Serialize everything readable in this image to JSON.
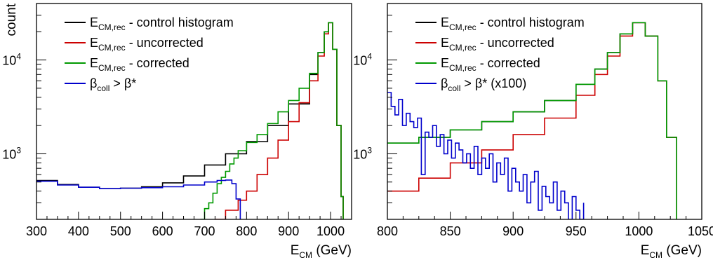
{
  "chart_data": [
    {
      "type": "line",
      "panel": "left",
      "xlabel": "E",
      "xlabel_sub": "CM",
      "xlabel_unit": " (GeV)",
      "ylabel": "count",
      "xlim": [
        300,
        1050
      ],
      "ylim": [
        200,
        40000
      ],
      "yscale": "log",
      "xticks": [
        300,
        400,
        500,
        600,
        700,
        800,
        900,
        1000
      ],
      "yticks": [
        {
          "value": 1000,
          "base": "10",
          "exp": "3"
        },
        {
          "value": 10000,
          "base": "10",
          "exp": "4"
        }
      ],
      "legend": {
        "position": "top-left"
      },
      "series": [
        {
          "key": "control",
          "label_main": "E",
          "label_sub": "CM,rec",
          "label_rest": " - control histogram",
          "color": "#000000",
          "x": [
            300,
            350,
            400,
            450,
            500,
            550,
            600,
            650,
            700,
            750,
            800,
            850,
            900,
            950,
            970,
            985,
            995,
            1005,
            1015,
            1025,
            1030
          ],
          "y": [
            520,
            470,
            440,
            425,
            430,
            445,
            490,
            580,
            760,
            1000,
            1350,
            2000,
            3400,
            7000,
            12000,
            20000,
            25000,
            13000,
            2000,
            350,
            200
          ]
        },
        {
          "key": "uncorrected",
          "label_main": "E",
          "label_sub": "CM,rec",
          "label_rest": " - uncorrected",
          "color": "#cc0000",
          "x": [
            725,
            750,
            780,
            800,
            825,
            850,
            875,
            900,
            925,
            950,
            970,
            985,
            995,
            1005,
            1015,
            1025,
            1030
          ],
          "y": [
            200,
            250,
            320,
            400,
            600,
            900,
            1400,
            2200,
            3500,
            6000,
            11000,
            19000,
            25000,
            13000,
            2000,
            350,
            200
          ]
        },
        {
          "key": "corrected",
          "label_main": "E",
          "label_sub": "CM,rec",
          "label_rest": " - corrected",
          "color": "#009900",
          "x": [
            690,
            700,
            710,
            720,
            730,
            740,
            750,
            760,
            770,
            780,
            800,
            825,
            850,
            875,
            900,
            925,
            950,
            970,
            985,
            995,
            1005,
            1015,
            1025,
            1030
          ],
          "y": [
            200,
            260,
            300,
            380,
            480,
            560,
            650,
            780,
            900,
            1080,
            1320,
            1600,
            2100,
            2800,
            3700,
            5000,
            7200,
            12000,
            20000,
            25000,
            13000,
            2000,
            350,
            200
          ]
        },
        {
          "key": "betacoll",
          "label_main": "β",
          "label_sub": "coll",
          "label_rest": " > β*",
          "color": "#0000cc",
          "x": [
            300,
            350,
            400,
            450,
            500,
            550,
            600,
            650,
            700,
            730,
            750,
            765,
            775,
            785
          ],
          "y": [
            510,
            465,
            440,
            425,
            430,
            435,
            445,
            465,
            500,
            520,
            525,
            480,
            330,
            200
          ]
        }
      ]
    },
    {
      "type": "line",
      "panel": "right",
      "xlabel": "E",
      "xlabel_sub": "CM",
      "xlabel_unit": " (GeV)",
      "ylabel": "",
      "xlim": [
        800,
        1050
      ],
      "ylim": [
        200,
        40000
      ],
      "yscale": "log",
      "xticks": [
        800,
        850,
        900,
        950,
        1000,
        1050
      ],
      "yticks": [
        {
          "value": 1000,
          "base": "10",
          "exp": "3"
        },
        {
          "value": 10000,
          "base": "10",
          "exp": "4"
        }
      ],
      "legend": {
        "position": "top-left"
      },
      "series": [
        {
          "key": "control",
          "label_main": "E",
          "label_sub": "CM,rec",
          "label_rest": " - control histogram",
          "color": "#000000",
          "x": [
            800,
            825,
            850,
            875,
            900,
            925,
            950,
            965,
            975,
            985,
            995,
            1005,
            1015,
            1022,
            1030
          ],
          "y": [
            1300,
            1500,
            1800,
            2200,
            2800,
            3700,
            5500,
            8000,
            12000,
            19000,
            25000,
            18000,
            6000,
            1500,
            200
          ]
        },
        {
          "key": "uncorrected",
          "label_main": "E",
          "label_sub": "CM,rec",
          "label_rest": " - uncorrected",
          "color": "#cc0000",
          "x": [
            800,
            825,
            850,
            875,
            900,
            925,
            950,
            965,
            975,
            985,
            995,
            1005,
            1015,
            1022,
            1030
          ],
          "y": [
            400,
            550,
            800,
            1100,
            1600,
            2400,
            4200,
            7000,
            11000,
            18000,
            25000,
            18000,
            6000,
            1500,
            200
          ]
        },
        {
          "key": "corrected",
          "label_main": "E",
          "label_sub": "CM,rec",
          "label_rest": " - corrected",
          "color": "#009900",
          "x": [
            800,
            825,
            850,
            875,
            900,
            925,
            950,
            965,
            975,
            985,
            995,
            1005,
            1015,
            1022,
            1030
          ],
          "y": [
            1300,
            1500,
            1800,
            2200,
            2800,
            3700,
            5500,
            8000,
            12000,
            19000,
            25000,
            18000,
            6000,
            1500,
            200
          ]
        },
        {
          "key": "betacoll",
          "label_main": "β",
          "label_sub": "coll",
          "label_rest": " > β* (x100)",
          "color": "#0000cc",
          "x": [
            800,
            803,
            806,
            809,
            812,
            815,
            818,
            821,
            824,
            827,
            830,
            833,
            836,
            839,
            842,
            845,
            848,
            851,
            854,
            857,
            860,
            863,
            866,
            869,
            872,
            875,
            878,
            881,
            884,
            887,
            890,
            893,
            896,
            899,
            902,
            905,
            908,
            911,
            914,
            917,
            920,
            923,
            926,
            929,
            932,
            935,
            938,
            941,
            944,
            947,
            950,
            953,
            956
          ],
          "y": [
            4500,
            3200,
            2600,
            3800,
            2000,
            2700,
            2200,
            1900,
            2400,
            600,
            1700,
            1500,
            2000,
            1200,
            1600,
            1000,
            1400,
            900,
            1300,
            1100,
            800,
            1000,
            700,
            1200,
            600,
            900,
            700,
            1000,
            500,
            800,
            600,
            900,
            400,
            700,
            500,
            400,
            600,
            300,
            500,
            650,
            250,
            450,
            350,
            300,
            500,
            250,
            400,
            300,
            200,
            350,
            250,
            200,
            300
          ]
        }
      ]
    }
  ]
}
